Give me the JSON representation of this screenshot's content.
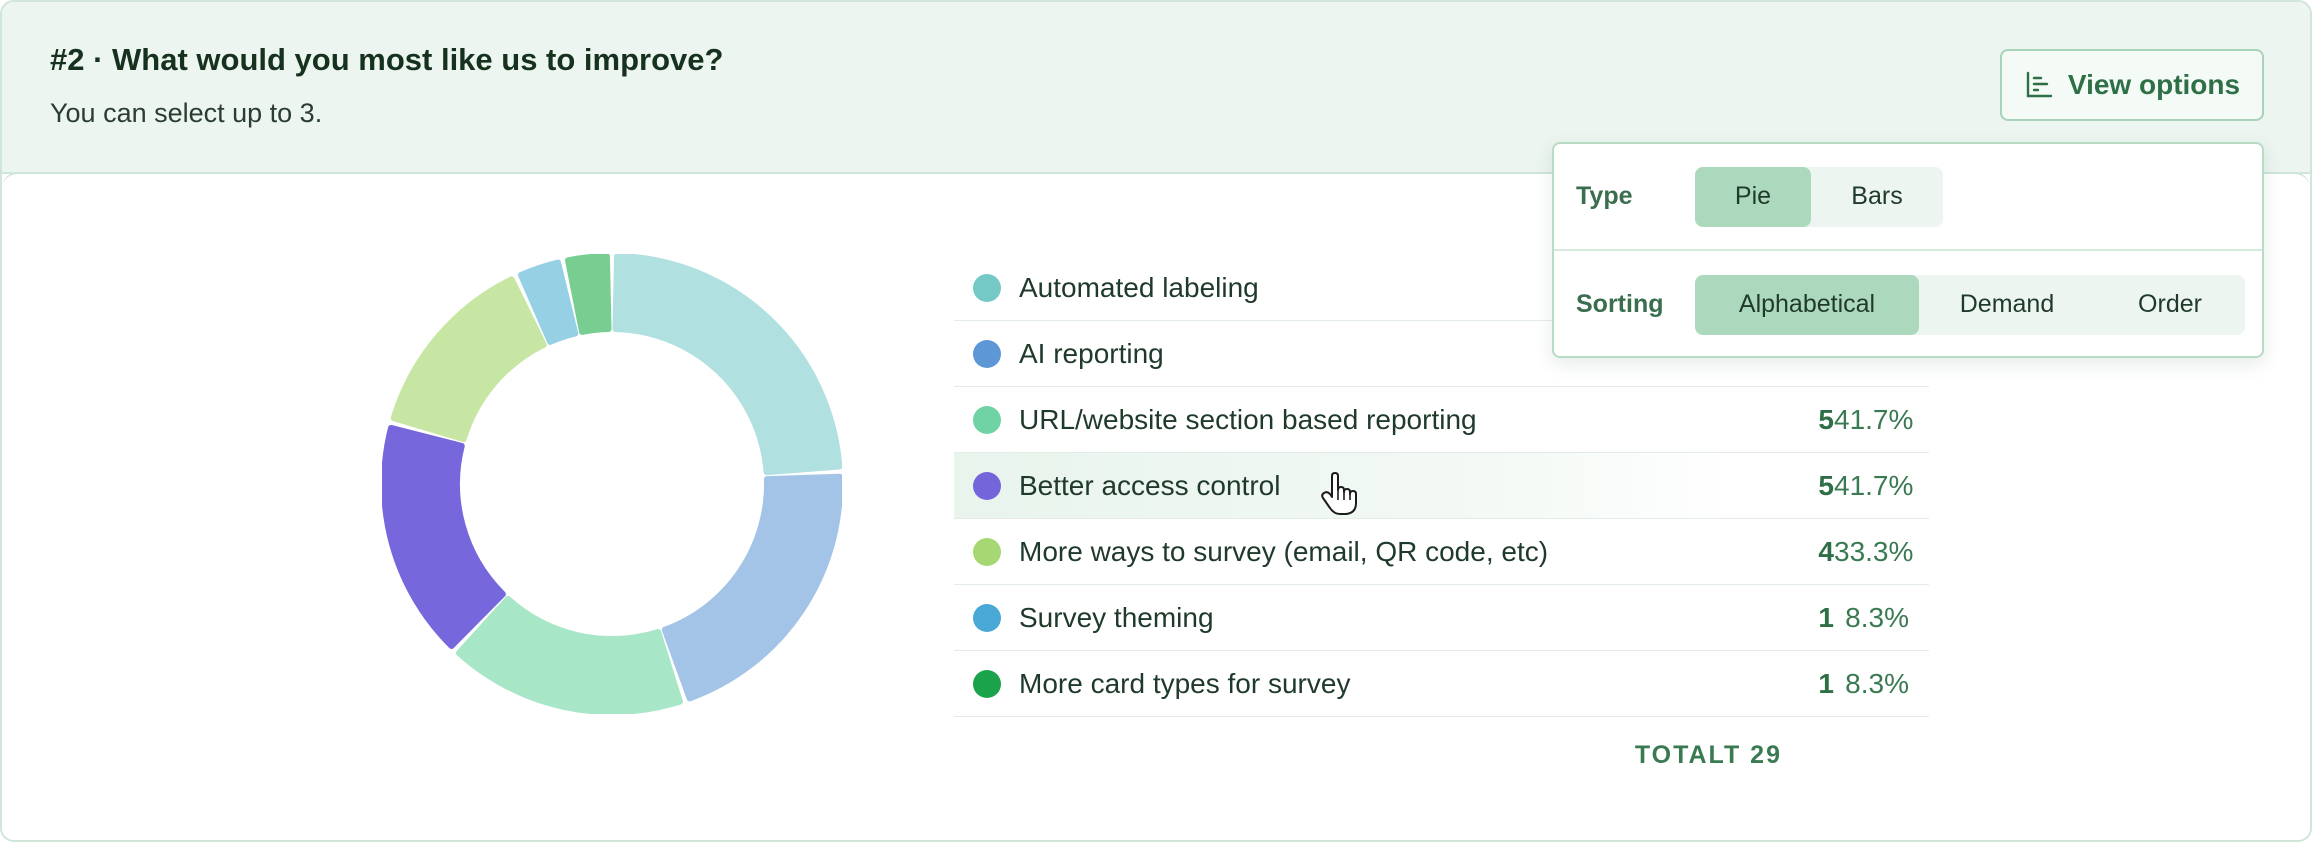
{
  "question": {
    "title": "#2 · What would you most like us to improve?",
    "subtitle": "You can select up to 3."
  },
  "toolbar": {
    "view_options_label": "View options",
    "view_options_icon": "bar-chart-icon"
  },
  "popover": {
    "type_label": "Type",
    "type_options": [
      "Pie",
      "Bars"
    ],
    "type_selected": "Pie",
    "sorting_label": "Sorting",
    "sorting_options": [
      "Alphabetical",
      "Demand",
      "Order"
    ],
    "sorting_selected": "Alphabetical"
  },
  "legend": {
    "rows": [
      {
        "label": "Automated labeling",
        "count": "",
        "percent": "",
        "color": "#74c9c6"
      },
      {
        "label": "AI reporting",
        "count": "",
        "percent": "",
        "color": "#5e97d6"
      },
      {
        "label": "URL/website section based reporting",
        "count": "5",
        "percent": "41.7%",
        "color": "#6fd3a5"
      },
      {
        "label": "Better access control",
        "count": "5",
        "percent": "41.7%",
        "color": "#7466da"
      },
      {
        "label": "More ways to survey (email, QR code, etc)",
        "count": "4",
        "percent": "33.3%",
        "color": "#a6d772"
      },
      {
        "label": "Survey theming",
        "count": "1",
        "percent": "8.3%",
        "color": "#4aa8d6"
      },
      {
        "label": "More card types for survey",
        "count": "1",
        "percent": "8.3%",
        "color": "#1aa34b"
      }
    ],
    "total_label": "TOTALT 29"
  },
  "chart_data": {
    "type": "pie",
    "variant": "donut",
    "categories": [
      "Automated labeling",
      "AI reporting",
      "URL/website section based reporting",
      "Better access control",
      "More ways to survey (email, QR code, etc)",
      "Survey theming",
      "More card types for survey"
    ],
    "values": [
      7,
      6,
      5,
      5,
      4,
      1,
      1
    ],
    "total": 29,
    "slice_colors": [
      "#b0e0df",
      "#a4c4e7",
      "#a8e6c8",
      "#7668dc",
      "#c8e6a3",
      "#96d0e5",
      "#78cd91"
    ],
    "start_angle_deg": 0
  }
}
